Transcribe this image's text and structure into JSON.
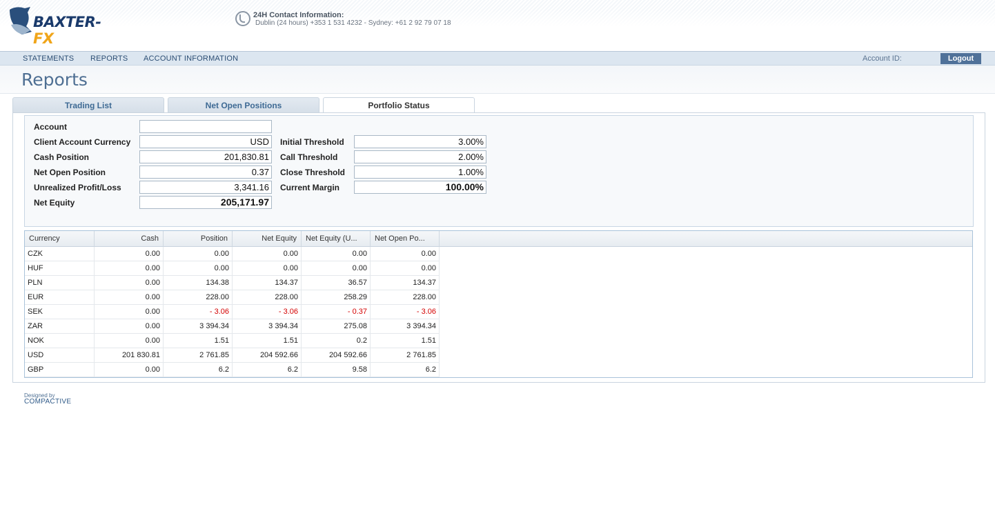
{
  "header": {
    "logo_text_main": "BAXTER-",
    "logo_text_accent": "FX",
    "contact_title": "24H Contact Information:",
    "contact_line": "Dublin (24 hours) +353 1 531 4232 - Sydney: +61 2 92 79 07 18"
  },
  "nav": {
    "items": [
      "STATEMENTS",
      "REPORTS",
      "ACCOUNT INFORMATION"
    ],
    "account_id_label": "Account ID:",
    "logout_label": "Logout"
  },
  "page": {
    "title": "Reports"
  },
  "tabs": [
    {
      "label": "Trading List",
      "active": false
    },
    {
      "label": "Net Open Positions",
      "active": false
    },
    {
      "label": "Portfolio Status",
      "active": true
    }
  ],
  "form": {
    "left": [
      {
        "label": "Account",
        "value": ""
      },
      {
        "label": "Client Account Currency",
        "value": "USD"
      },
      {
        "label": "Cash Position",
        "value": "201,830.81"
      },
      {
        "label": "Net Open Position",
        "value": "0.37"
      },
      {
        "label": "Unrealized Profit/Loss",
        "value": "3,341.16"
      },
      {
        "label": "Net Equity",
        "value": "205,171.97"
      }
    ],
    "right": [
      {
        "label": "Initial Threshold",
        "value": "3.00%"
      },
      {
        "label": "Call Threshold",
        "value": "2.00%"
      },
      {
        "label": "Close Threshold",
        "value": "1.00%"
      },
      {
        "label": "Current Margin",
        "value": "100.00%"
      }
    ]
  },
  "grid": {
    "columns": [
      "Currency",
      "Cash",
      "Position",
      "Net Equity",
      "Net Equity (U...",
      "Net Open Po..."
    ],
    "rows": [
      [
        "CZK",
        "0.00",
        "0.00",
        "0.00",
        "0.00",
        "0.00"
      ],
      [
        "HUF",
        "0.00",
        "0.00",
        "0.00",
        "0.00",
        "0.00"
      ],
      [
        "PLN",
        "0.00",
        "134.38",
        "134.37",
        "36.57",
        "134.37"
      ],
      [
        "EUR",
        "0.00",
        "228.00",
        "228.00",
        "258.29",
        "228.00"
      ],
      [
        "SEK",
        "0.00",
        "- 3.06",
        "- 3.06",
        "- 0.37",
        "- 3.06"
      ],
      [
        "ZAR",
        "0.00",
        "3 394.34",
        "3 394.34",
        "275.08",
        "3 394.34"
      ],
      [
        "NOK",
        "0.00",
        "1.51",
        "1.51",
        "0.2",
        "1.51"
      ],
      [
        "USD",
        "201 830.81",
        "2 761.85",
        "204 592.66",
        "204 592.66",
        "2 761.85"
      ],
      [
        "GBP",
        "0.00",
        "6.2",
        "6.2",
        "9.58",
        "6.2"
      ]
    ],
    "negative_color": "#d40000"
  },
  "footer": {
    "designed_by": "Designed by",
    "brand": "COMPACTIVE"
  }
}
